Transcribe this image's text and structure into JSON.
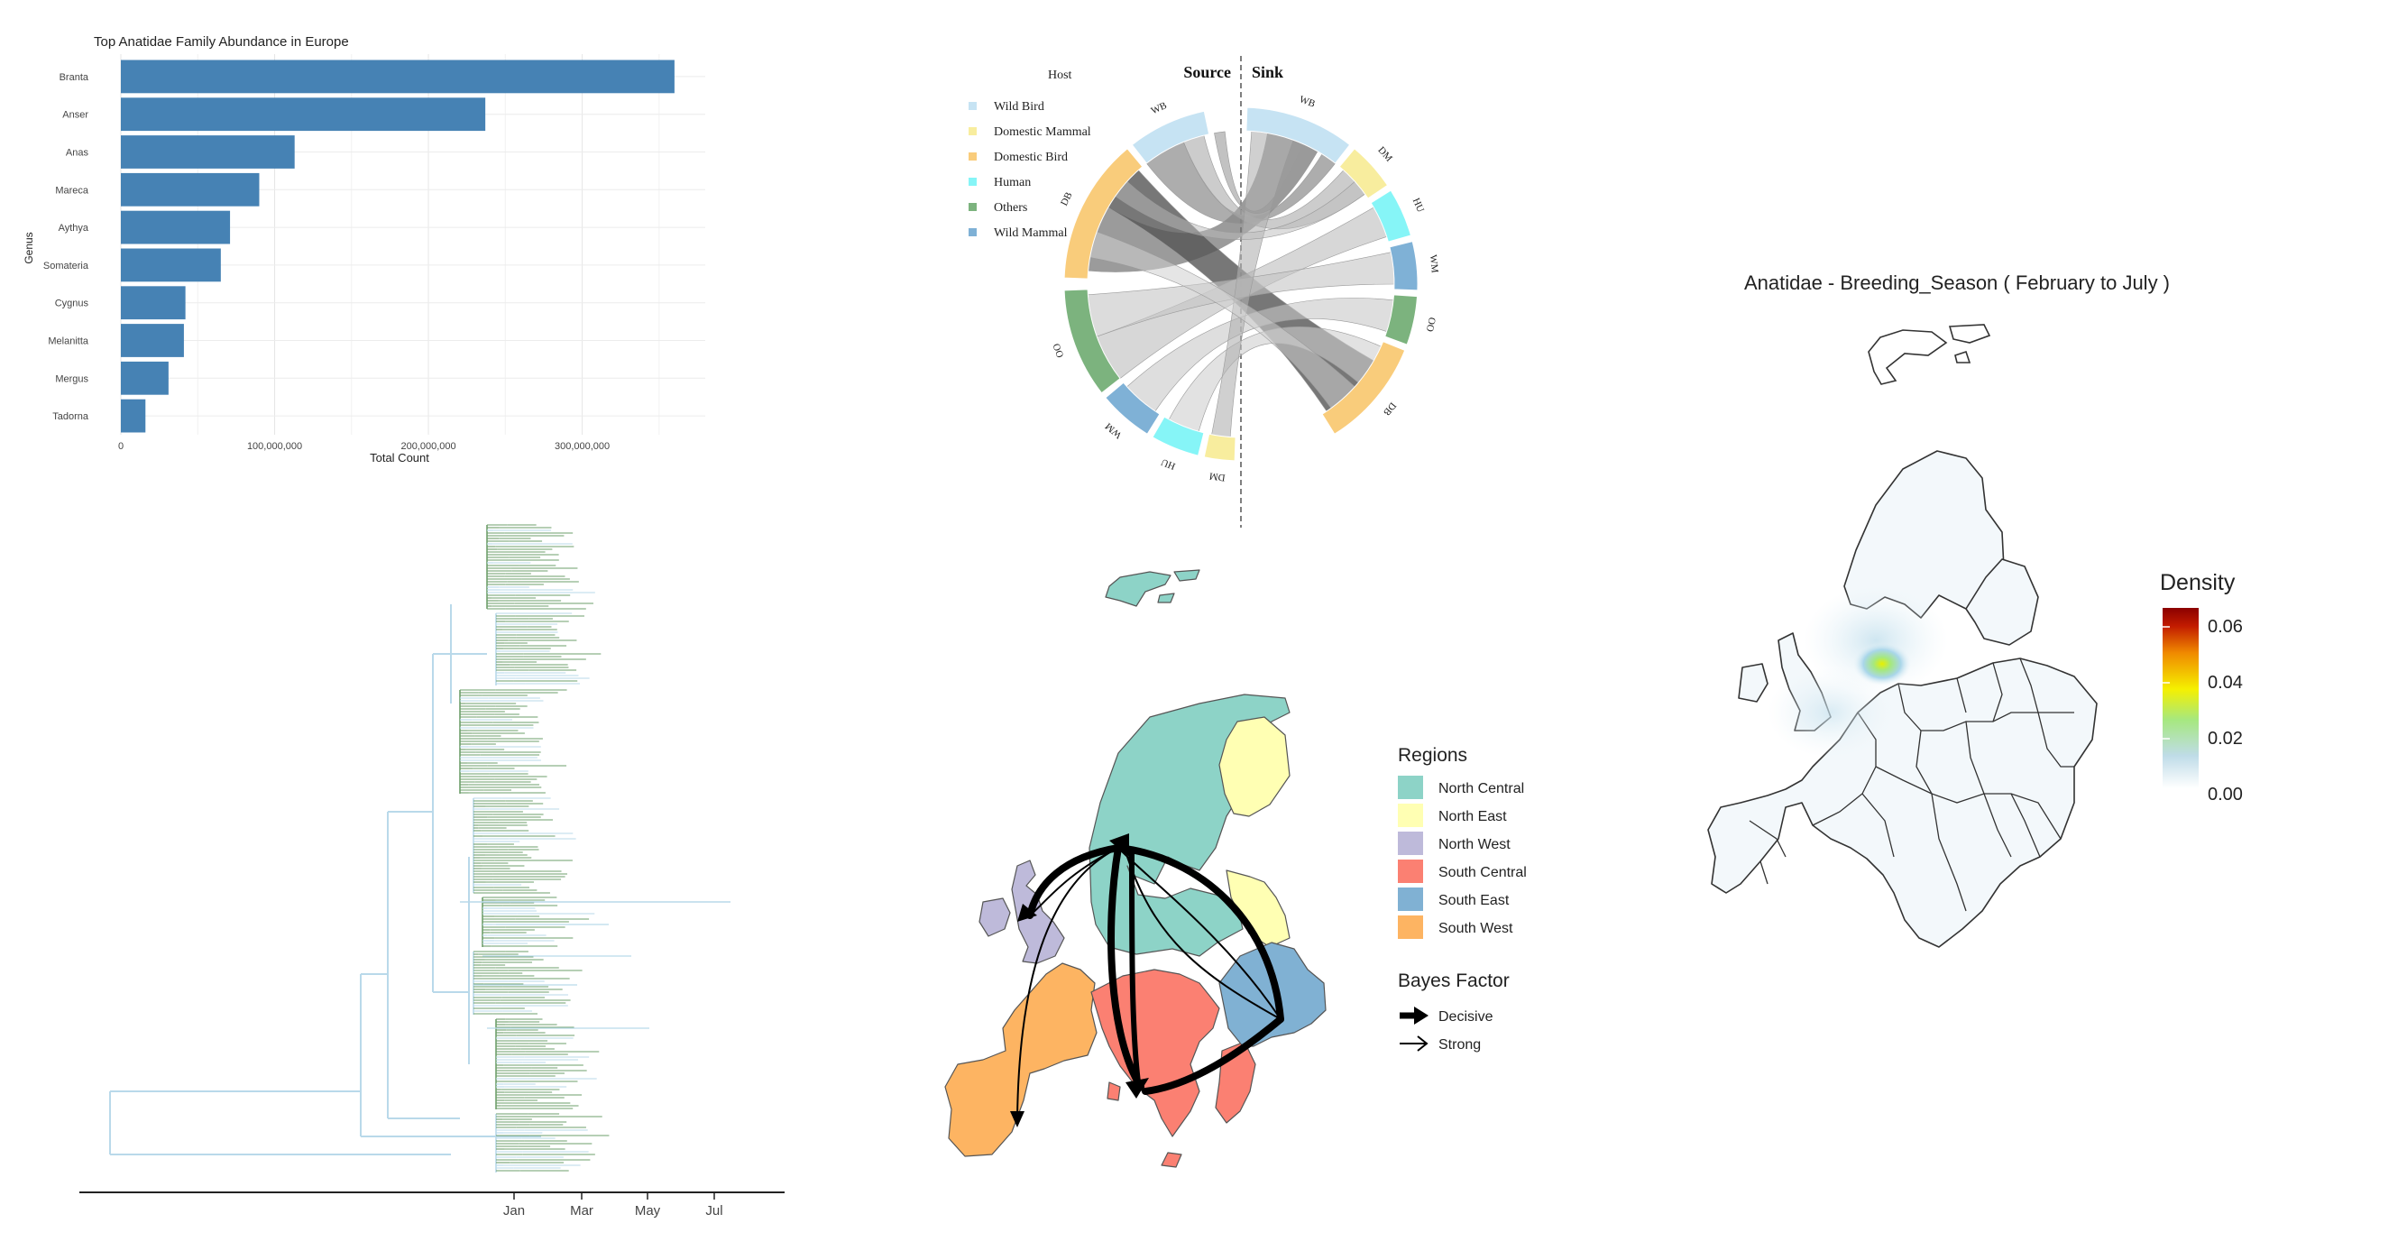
{
  "bar_panel": {
    "chart_data": {
      "type": "bar",
      "orientation": "horizontal",
      "title": "Top Anatidae Family Abundance in Europe",
      "xlabel": "Total Count",
      "ylabel": "Genus",
      "categories": [
        "Branta",
        "Anser",
        "Anas",
        "Mareca",
        "Aythya",
        "Somateria",
        "Cygnus",
        "Melanitta",
        "Mergus",
        "Tadorna"
      ],
      "values": [
        360000000,
        237000000,
        113000000,
        90000000,
        71000000,
        65000000,
        42000000,
        41000000,
        31000000,
        16000000
      ],
      "xlim": [
        0,
        380000000
      ],
      "xticks": [
        0,
        100000000,
        200000000,
        300000000
      ],
      "xtick_labels": [
        "0",
        "100,000,000",
        "200,000,000",
        "300,000,000"
      ],
      "grid": true,
      "bar_color": "#4682B4"
    }
  },
  "chord_panel": {
    "legend_title": "Host",
    "legend": [
      {
        "label": "Wild Bird",
        "color": "#C6E3F3"
      },
      {
        "label": "Domestic Mammal",
        "color": "#F8ED9E"
      },
      {
        "label": "Domestic Bird",
        "color": "#F9CC7B"
      },
      {
        "label": "Human",
        "color": "#86F5F7"
      },
      {
        "label": "Others",
        "color": "#7CB37E"
      },
      {
        "label": "Wild Mammal",
        "color": "#7FB1D6"
      }
    ],
    "source_label": "Source",
    "sink_label": "Sink",
    "source_sectors": [
      {
        "abbr": "WB",
        "color": "#C6E3F3"
      },
      {
        "abbr": "DB",
        "color": "#F9CC7B"
      },
      {
        "abbr": "OO",
        "color": "#7CB37E"
      },
      {
        "abbr": "WM",
        "color": "#7FB1D6"
      },
      {
        "abbr": "HU",
        "color": "#86F5F7"
      },
      {
        "abbr": "DM",
        "color": "#F8ED9E"
      }
    ],
    "sink_sectors": [
      {
        "abbr": "WB",
        "color": "#C6E3F3"
      },
      {
        "abbr": "DM",
        "color": "#F8ED9E"
      },
      {
        "abbr": "HU",
        "color": "#86F5F7"
      },
      {
        "abbr": "WM",
        "color": "#7FB1D6"
      },
      {
        "abbr": "OO",
        "color": "#7CB37E"
      },
      {
        "abbr": "DB",
        "color": "#F9CC7B"
      }
    ]
  },
  "tree_panel": {
    "axis_labels": [
      "Jan",
      "Mar",
      "May",
      "Jul"
    ],
    "branch_colors": {
      "wild_bird": "#B9D9EA",
      "others": "#6E9F6B"
    }
  },
  "region_map_panel": {
    "regions_title": "Regions",
    "regions": [
      {
        "label": "North Central",
        "color": "#8DD3C7"
      },
      {
        "label": "North East",
        "color": "#FFFFB3"
      },
      {
        "label": "North West",
        "color": "#BEBADA"
      },
      {
        "label": "South Central",
        "color": "#FB8072"
      },
      {
        "label": "South East",
        "color": "#80B1D3"
      },
      {
        "label": "South West",
        "color": "#FDB462"
      }
    ],
    "bayes_title": "Bayes Factor",
    "bayes": [
      {
        "label": "Decisive"
      },
      {
        "label": "Strong"
      }
    ]
  },
  "density_panel": {
    "title": "Anatidae - Breeding_Season ( February to July )",
    "legend_title": "Density",
    "legend_ticks": [
      "0.06",
      "0.04",
      "0.02",
      "0.00"
    ],
    "gradient": [
      "#FFFFFF",
      "#BFDCE8",
      "#A6E87F",
      "#F5F000",
      "#F08A00",
      "#C21B00",
      "#8B0000"
    ]
  }
}
